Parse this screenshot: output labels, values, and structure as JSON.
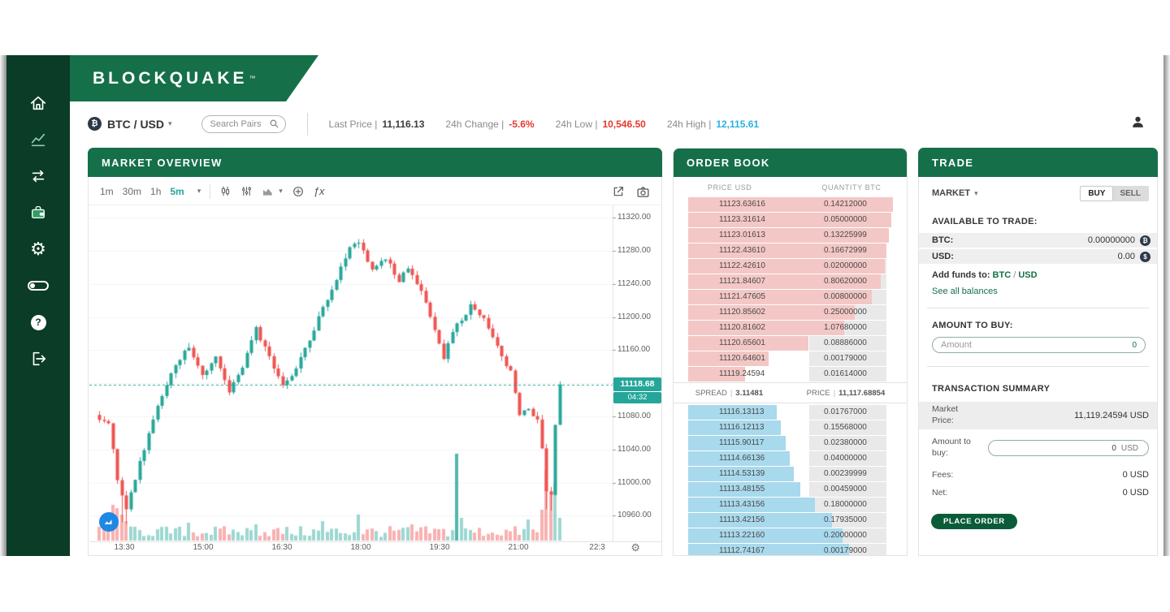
{
  "brand": {
    "logo": "BLOCKQUAKE",
    "tm": "™"
  },
  "sidebar": {
    "items": [
      "home",
      "markets",
      "transfers",
      "wallet",
      "settings",
      "theme-toggle",
      "help",
      "logout"
    ]
  },
  "topbar": {
    "pair_icon": "₿",
    "pair": "BTC / USD",
    "search_placeholder": "Search Pairs",
    "stats": [
      {
        "label": "Last Price |",
        "value": "11,116.13",
        "color": "#3c3c3c"
      },
      {
        "label": "24h Change |",
        "value": "-5.6%",
        "color": "#e8362d"
      },
      {
        "label": "24h Low |",
        "value": "10,546.50",
        "color": "#e8362d"
      },
      {
        "label": "24h High |",
        "value": "12,115.61",
        "color": "#29b1e0"
      }
    ]
  },
  "market": {
    "title": "MARKET OVERVIEW",
    "toolbar": {
      "timeframes": [
        "1m",
        "30m",
        "1h",
        "5m"
      ],
      "active": "5m",
      "fx": "ƒx"
    },
    "chart_data": {
      "type": "candlestick",
      "symbol": "BTC/USD",
      "interval": "5m",
      "ylim": [
        10928,
        11335
      ],
      "y_ticks": [
        "11320.00",
        "11280.00",
        "11240.00",
        "11200.00",
        "11160.00",
        "11120.00",
        "11080.00",
        "11040.00",
        "11000.00",
        "10960.00"
      ],
      "x_ticks": [
        "13:30",
        "15:00",
        "16:30",
        "18:00",
        "19:30",
        "21:00",
        "22:3"
      ],
      "current_price": 11118.68,
      "current_price_label": "11118.68",
      "countdown": "04:32",
      "candle_count": 104,
      "close_anchors": [
        [
          0,
          11078
        ],
        [
          2,
          11072
        ],
        [
          4,
          11005
        ],
        [
          6,
          10968
        ],
        [
          9,
          11025
        ],
        [
          13,
          11095
        ],
        [
          17,
          11145
        ],
        [
          20,
          11162
        ],
        [
          23,
          11128
        ],
        [
          26,
          11152
        ],
        [
          29,
          11108
        ],
        [
          32,
          11142
        ],
        [
          35,
          11186
        ],
        [
          38,
          11150
        ],
        [
          41,
          11116
        ],
        [
          44,
          11138
        ],
        [
          47,
          11172
        ],
        [
          50,
          11212
        ],
        [
          53,
          11248
        ],
        [
          56,
          11282
        ],
        [
          58,
          11292
        ],
        [
          61,
          11258
        ],
        [
          64,
          11272
        ],
        [
          67,
          11242
        ],
        [
          69,
          11262
        ],
        [
          72,
          11232
        ],
        [
          75,
          11182
        ],
        [
          77,
          11152
        ],
        [
          80,
          11192
        ],
        [
          83,
          11212
        ],
        [
          86,
          11198
        ],
        [
          89,
          11162
        ],
        [
          92,
          11132
        ],
        [
          94,
          11082
        ],
        [
          96,
          11088
        ],
        [
          98,
          11075
        ],
        [
          99,
          11040
        ],
        [
          100,
          10990
        ],
        [
          101,
          10985
        ],
        [
          102,
          11070
        ],
        [
          103,
          11118.68
        ]
      ],
      "extra_lows": {
        "5": 10952,
        "6": 10950,
        "100": 10968,
        "101": 10966
      },
      "volume_spikes": {
        "2": 26,
        "3": 44,
        "4": 40,
        "5": 32,
        "6": 24,
        "20": 22,
        "35": 20,
        "50": 24,
        "58": 32,
        "70": 20,
        "80": 107,
        "81": 28,
        "96": 26,
        "99": 38,
        "100": 86,
        "101": 56,
        "102": 70,
        "103": 28
      },
      "colors": {
        "up": "#26a69a",
        "down": "#ef5350",
        "vol_up": "rgba(38,166,154,0.45)",
        "vol_down": "rgba(239,83,80,0.45)"
      }
    }
  },
  "orderbook": {
    "title": "ORDER BOOK",
    "columns": [
      "PRICE USD",
      "QUANTITY BTC"
    ],
    "asks": [
      {
        "price": "11123.63616",
        "qty": "0.14212000",
        "depth": 97
      },
      {
        "price": "11123.31614",
        "qty": "0.05000000",
        "depth": 96
      },
      {
        "price": "11123.01613",
        "qty": "0.13225999",
        "depth": 95
      },
      {
        "price": "11122.43610",
        "qty": "0.16672999",
        "depth": 94
      },
      {
        "price": "11122.42610",
        "qty": "0.02000000",
        "depth": 93
      },
      {
        "price": "11121.84607",
        "qty": "0.80620000",
        "depth": 91
      },
      {
        "price": "11121.47605",
        "qty": "0.00800000",
        "depth": 87
      },
      {
        "price": "11120.85602",
        "qty": "0.25000000",
        "depth": 79
      },
      {
        "price": "11120.81602",
        "qty": "1.07680000",
        "depth": 74
      },
      {
        "price": "11120.65601",
        "qty": "0.08886000",
        "depth": 57
      },
      {
        "price": "11120.64601",
        "qty": "0.00179000",
        "depth": 38
      },
      {
        "price": "11119.24594",
        "qty": "0.01614000",
        "depth": 27
      }
    ],
    "spread": {
      "label": "SPREAD",
      "value": "3.11481",
      "price_label": "PRICE",
      "price": "11,117.68854"
    },
    "bids": [
      {
        "price": "11116.13113",
        "qty": "0.01767000",
        "depth": 42
      },
      {
        "price": "11116.12113",
        "qty": "0.15568000",
        "depth": 44
      },
      {
        "price": "11115.90117",
        "qty": "0.02380000",
        "depth": 46
      },
      {
        "price": "11114.66136",
        "qty": "0.04000000",
        "depth": 48
      },
      {
        "price": "11114.53139",
        "qty": "0.00239999",
        "depth": 50
      },
      {
        "price": "11113.48155",
        "qty": "0.00459000",
        "depth": 53
      },
      {
        "price": "11113.43156",
        "qty": "0.18000000",
        "depth": 60
      },
      {
        "price": "11113.42156",
        "qty": "0.17935000",
        "depth": 68
      },
      {
        "price": "11113.22160",
        "qty": "0.20000000",
        "depth": 73
      },
      {
        "price": "11112.74167",
        "qty": "0.00179000",
        "depth": 76
      }
    ]
  },
  "trade": {
    "title": "TRADE",
    "order_type": "MARKET",
    "buy": "BUY",
    "sell": "SELL",
    "available_title": "AVAILABLE TO TRADE:",
    "balances": [
      {
        "asset": "BTC:",
        "amount": "0.00000000",
        "badge": "₿"
      },
      {
        "asset": "USD:",
        "amount": "0.00",
        "badge": "$"
      }
    ],
    "add_funds_label": "Add funds to:",
    "add_funds_btc": "BTC",
    "add_funds_sep": "/",
    "add_funds_usd": "USD",
    "see_all": "See all balances",
    "amount_title": "AMOUNT TO BUY:",
    "amount_placeholder": "Amount",
    "amount_value": "0",
    "summary_title": "TRANSACTION SUMMARY",
    "summary": {
      "market_price_label": "Market Price:",
      "market_price_value": "11,119.24594 USD",
      "amount_label": "Amount to buy:",
      "amount_value": "0",
      "amount_unit": "USD",
      "fees_label": "Fees:",
      "fees_value": "0 USD",
      "net_label": "Net:",
      "net_value": "0 USD"
    },
    "place_order": "PLACE ORDER"
  }
}
